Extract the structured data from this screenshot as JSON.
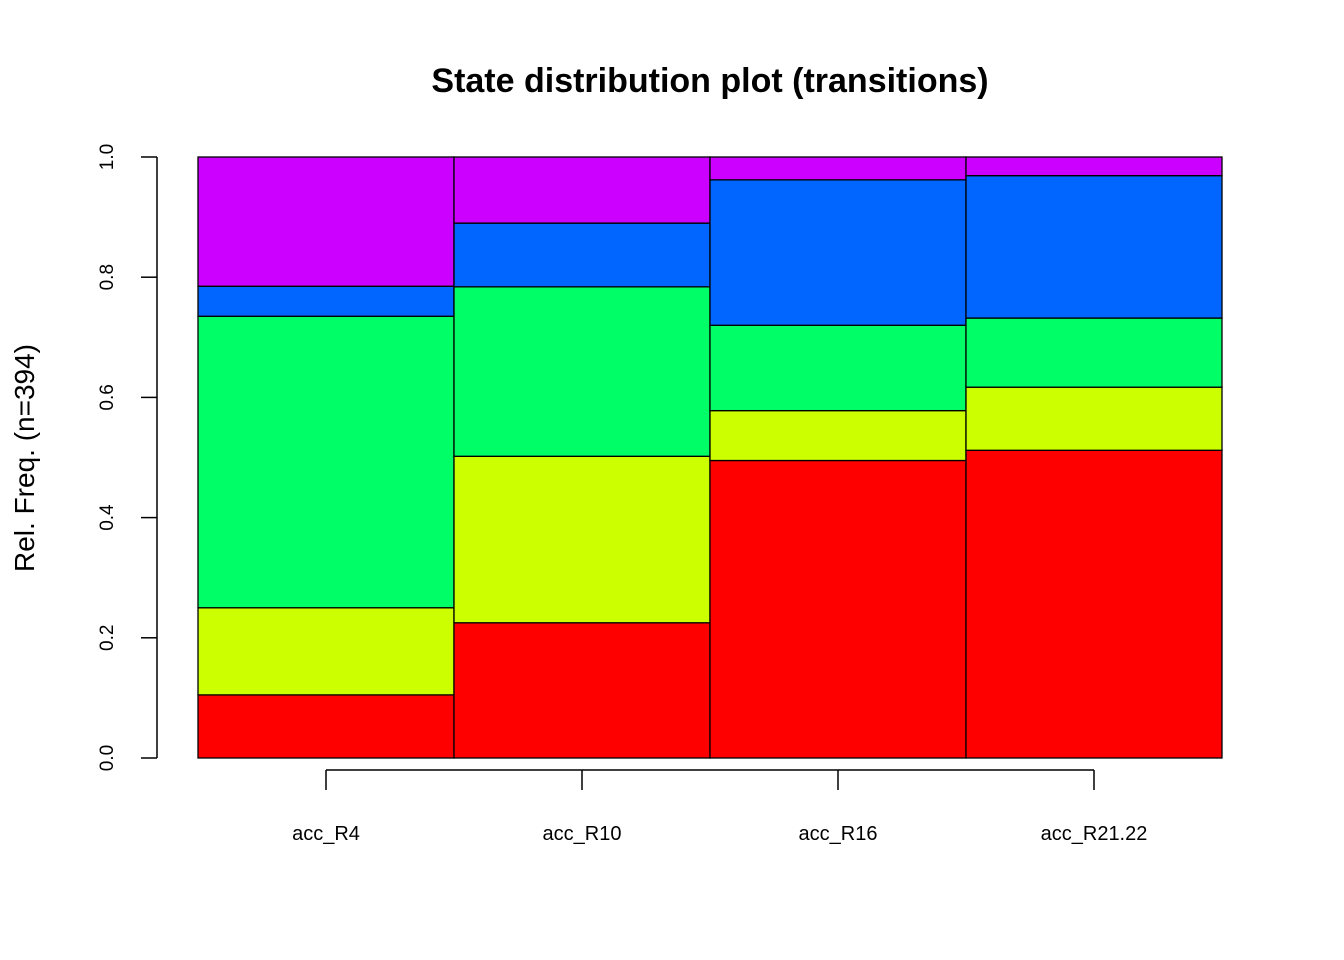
{
  "chart_data": {
    "type": "bar",
    "stacked": true,
    "normalized": true,
    "title": "State distribution plot (transitions)",
    "xlabel": "",
    "ylabel": "Rel. Freq. (n=394)",
    "ylim": [
      0,
      1
    ],
    "yticks": [
      "0.0",
      "0.2",
      "0.4",
      "0.6",
      "0.8",
      "1.0"
    ],
    "grid": false,
    "legend": "none",
    "categories": [
      "acc_R4",
      "acc_R10",
      "acc_R16",
      "acc_R21.22"
    ],
    "series": [
      {
        "color": "#FF0000",
        "values": [
          0.105,
          0.225,
          0.495,
          0.512
        ]
      },
      {
        "color": "#CCFF00",
        "values": [
          0.145,
          0.277,
          0.083,
          0.105
        ]
      },
      {
        "color": "#00FF66",
        "values": [
          0.485,
          0.282,
          0.142,
          0.115
        ]
      },
      {
        "color": "#0066FF",
        "values": [
          0.05,
          0.106,
          0.242,
          0.237
        ]
      },
      {
        "color": "#CC00FF",
        "values": [
          0.215,
          0.11,
          0.038,
          0.031
        ]
      }
    ]
  }
}
